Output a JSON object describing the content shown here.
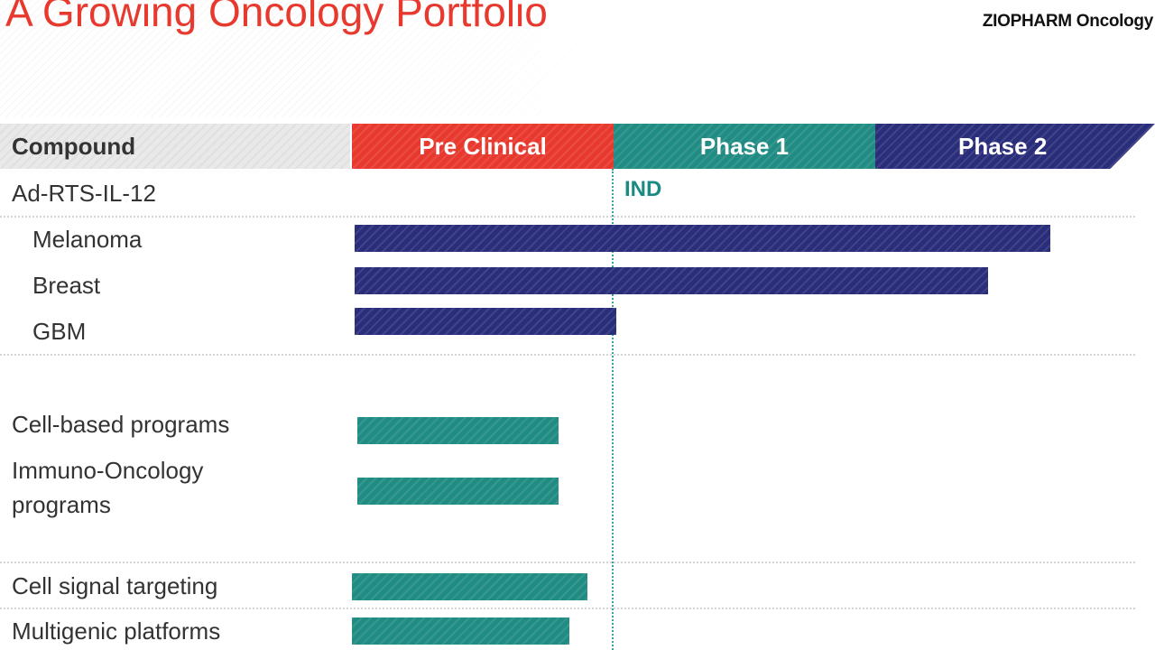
{
  "slide": {
    "title": "A Growing Oncology Portfolio",
    "logo": {
      "brand": "ZIOPHARM",
      "sub": "Oncology"
    }
  },
  "colors": {
    "title": "#e8392e",
    "pre_clinical": "#e8392e",
    "phase_1": "#218c83",
    "phase_2": "#2a2e7a",
    "ind": "#1a8b82",
    "divider": "#d4d4d4"
  },
  "chart_data": {
    "type": "bar",
    "orientation": "horizontal",
    "compound_header": "Compound",
    "phases": [
      "Pre Clinical",
      "Phase 1",
      "Phase 2"
    ],
    "milestone": {
      "label": "IND",
      "at_phase_progress": 1.0
    },
    "rows": [
      {
        "label": "Ad-RTS-IL-12",
        "indent": false,
        "heading": true
      },
      {
        "label": "Melanoma",
        "indent": true,
        "progress": 2.67,
        "color": "#2a2e7a",
        "start": 0.01
      },
      {
        "label": "Breast",
        "indent": true,
        "progress": 2.43,
        "color": "#2a2e7a",
        "start": 0.01
      },
      {
        "label": "GBM",
        "indent": true,
        "progress": 1.01,
        "color": "#2a2e7a",
        "start": 0.01
      },
      {
        "label": "Cell-based programs",
        "indent": false,
        "progress": 0.79,
        "color": "#218c83",
        "start": 0.02
      },
      {
        "label": "Immuno-Oncology programs",
        "indent": false,
        "lines": [
          "Immuno-Oncology",
          "programs"
        ],
        "progress": 0.79,
        "color": "#218c83",
        "start": 0.02
      },
      {
        "label": "Cell signal targeting",
        "indent": false,
        "progress": 0.9,
        "color": "#218c83",
        "start": 0.0
      },
      {
        "label": "Multigenic platforms",
        "indent": false,
        "progress": 0.83,
        "color": "#218c83",
        "start": 0.0
      }
    ]
  }
}
